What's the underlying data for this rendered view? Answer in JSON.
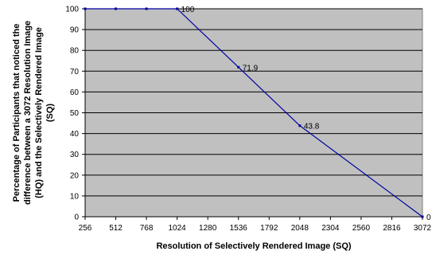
{
  "chart_data": {
    "type": "line",
    "title": "",
    "xlabel": "Resolution of Selectively Rendered Image (SQ)",
    "ylabel_lines": [
      "Percentage of Participants that noticed the",
      "difference between a 3072 Resolution Image",
      "(HQ) and the Selectively Rendered Image",
      "(SQ)"
    ],
    "x_ticks": [
      "256",
      "512",
      "768",
      "1024",
      "1280",
      "1536",
      "1792",
      "2048",
      "2304",
      "2560",
      "2816",
      "3072"
    ],
    "y_ticks": [
      "0",
      "10",
      "20",
      "30",
      "40",
      "50",
      "60",
      "70",
      "80",
      "90",
      "100"
    ],
    "xlim": [
      256,
      3072
    ],
    "ylim": [
      0,
      100
    ],
    "grid": "horizontal",
    "legend": "none",
    "colors": {
      "plot_background": "#c0c0c0",
      "line": "#0000a0",
      "gridline": "#000000"
    },
    "series": [
      {
        "x": [
          256,
          512,
          768,
          1024,
          1536,
          2048,
          3072
        ],
        "y": [
          100,
          100,
          100,
          100,
          71.9,
          43.8,
          0
        ]
      }
    ],
    "data_labels": [
      {
        "x": 1024,
        "y": 100,
        "text": "100"
      },
      {
        "x": 1536,
        "y": 71.9,
        "text": "71.9"
      },
      {
        "x": 2048,
        "y": 43.8,
        "text": "43.8"
      },
      {
        "x": 3072,
        "y": 0,
        "text": "0"
      }
    ]
  }
}
